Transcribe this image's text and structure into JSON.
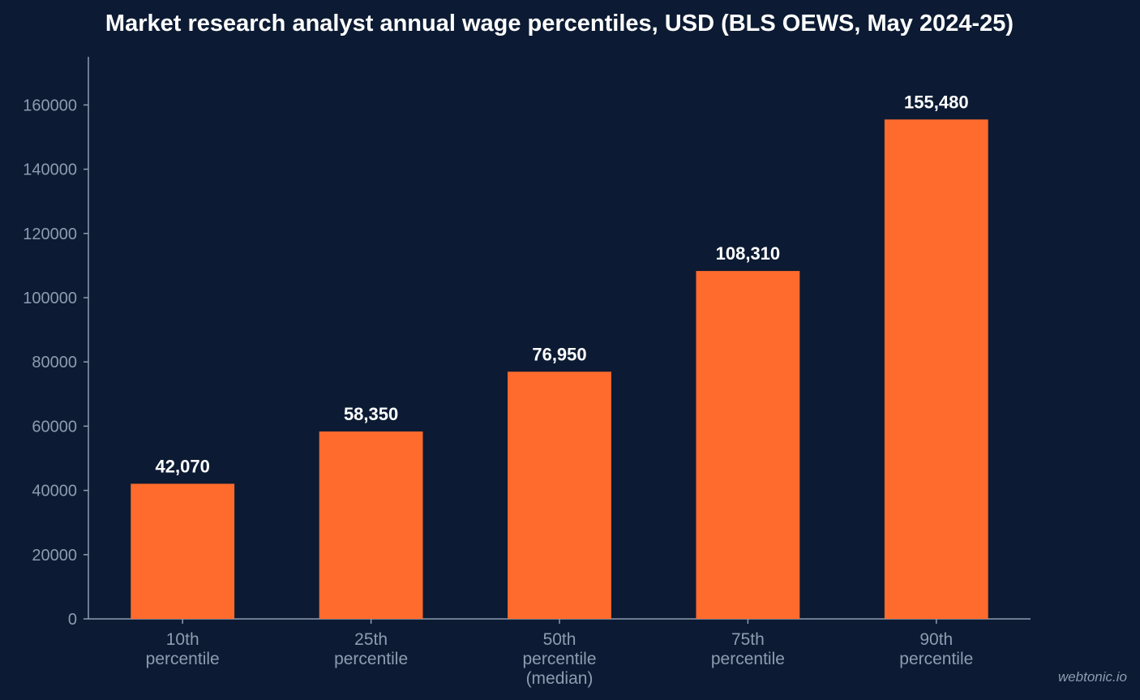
{
  "chart_data": {
    "type": "bar",
    "title": "Market research analyst annual wage percentiles, USD (BLS OEWS, May 2024-25)",
    "xlabel": "",
    "ylabel": "",
    "categories": [
      [
        "10th",
        "percentile"
      ],
      [
        "25th",
        "percentile"
      ],
      [
        "50th",
        "percentile",
        "(median)"
      ],
      [
        "75th",
        "percentile"
      ],
      [
        "90th",
        "percentile"
      ]
    ],
    "values": [
      42070,
      58350,
      76950,
      108310,
      155480
    ],
    "value_labels": [
      "42,070",
      "58,350",
      "76,950",
      "108,310",
      "155,480"
    ],
    "ylim": [
      0,
      175000
    ],
    "yticks": [
      0,
      20000,
      40000,
      60000,
      80000,
      100000,
      120000,
      140000,
      160000
    ],
    "ytick_labels": [
      "0",
      "20000",
      "40000",
      "60000",
      "80000",
      "100000",
      "120000",
      "140000",
      "160000"
    ],
    "grid": false,
    "bar_color": "#ff6b2c",
    "background_color": "#0c1b33"
  },
  "watermark": "webtonic.io"
}
